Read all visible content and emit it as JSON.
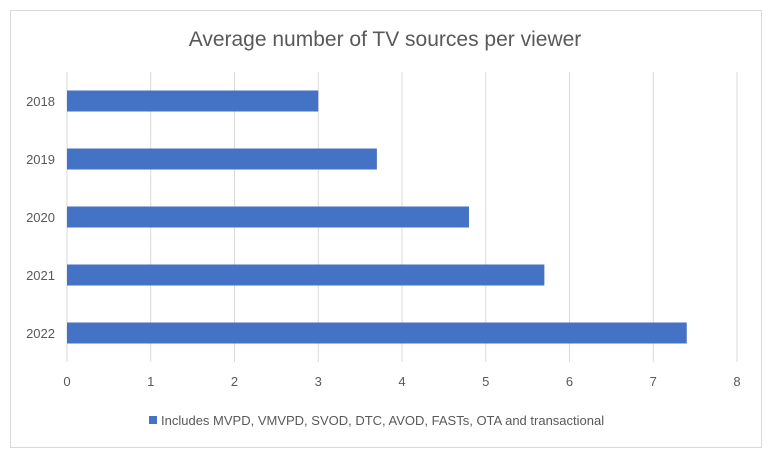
{
  "chart_data": {
    "type": "bar",
    "orientation": "horizontal",
    "title": "Average number of TV sources per viewer",
    "categories": [
      "2018",
      "2019",
      "2020",
      "2021",
      "2022"
    ],
    "series": [
      {
        "name": "Includes MVPD, VMVPD, SVOD, DTC, AVOD, FASTs, OTA and transactional",
        "values": [
          3.0,
          3.7,
          4.8,
          5.7,
          7.4
        ],
        "color": "#4472c4"
      }
    ],
    "x_ticks": [
      "0",
      "1",
      "2",
      "3",
      "4",
      "5",
      "6",
      "7",
      "8"
    ],
    "xlim": [
      0,
      8
    ],
    "grid": true,
    "legend_position": "bottom"
  }
}
